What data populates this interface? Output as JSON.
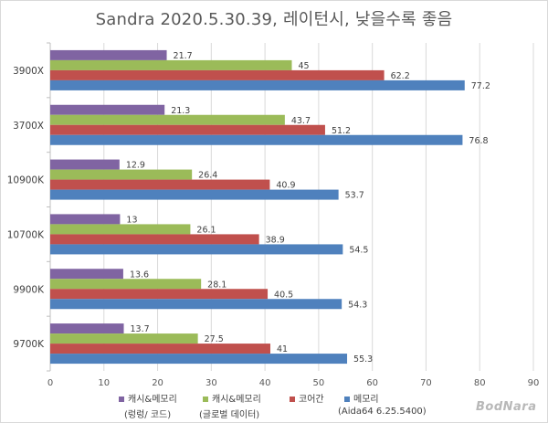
{
  "chart_data": {
    "type": "bar",
    "orientation": "horizontal",
    "title": "Sandra 2020.5.30.39, 레이턴시, 낮을수록 좋음",
    "categories": [
      "3900X",
      "3700X",
      "10900K",
      "10700K",
      "9900K",
      "9700K"
    ],
    "series": [
      {
        "name": "캐시&메모리",
        "color": "#8064a2",
        "values": [
          21.7,
          21.3,
          12.9,
          13,
          13.6,
          13.7
        ]
      },
      {
        "name": "캐시&메모리",
        "color": "#9bbb59",
        "values": [
          45,
          43.7,
          26.4,
          26.1,
          28.1,
          27.5
        ]
      },
      {
        "name": "코어간",
        "color": "#c0504d",
        "values": [
          62.2,
          51.2,
          40.9,
          38.9,
          40.5,
          41
        ]
      },
      {
        "name": "메모리",
        "color": "#4f81bd",
        "values": [
          77.2,
          76.8,
          53.7,
          54.5,
          54.3,
          55.3
        ]
      }
    ],
    "xlim": [
      0,
      90
    ],
    "xticks": [
      0,
      10,
      20,
      30,
      40,
      50,
      60,
      70,
      80,
      90
    ],
    "grid": true,
    "legend": "bottom",
    "legend_sublabels": [
      "(렁렁/ 코드)",
      "(글로벌 데이터)",
      "(Aida64 6.25.5400)"
    ]
  },
  "watermark": "BodNara"
}
